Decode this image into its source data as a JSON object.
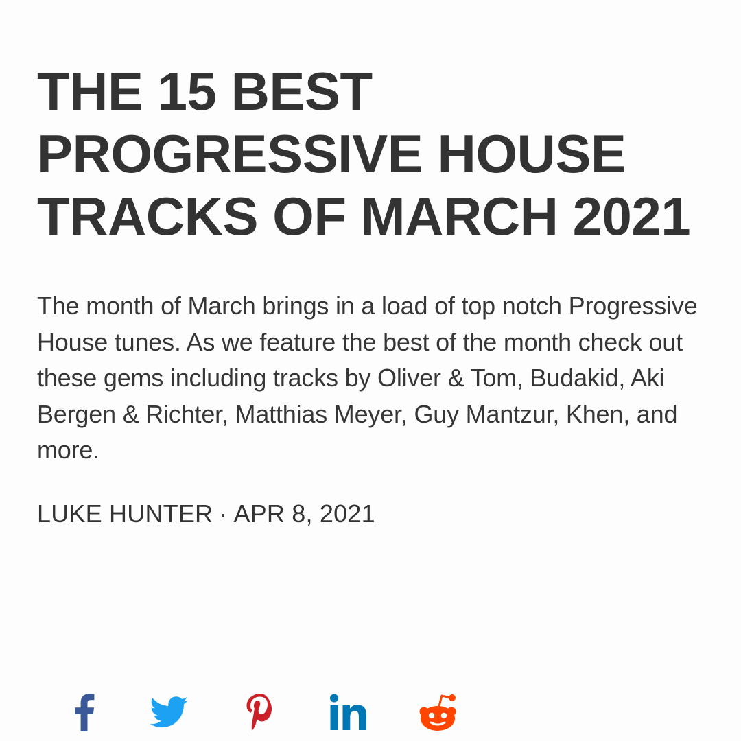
{
  "article": {
    "title": "THE 15 BEST PROGRESSIVE HOUSE TRACKS OF MARCH 2021",
    "dek": "The month of March brings in a load of top notch Progressive House tunes. As we feature the best of the month check out these gems including tracks by Oliver & Tom, Budakid, Aki Bergen & Richter, Matthias Meyer, Guy Mantzur, Khen, and more.",
    "author": "LUKE HUNTER",
    "separator": "·",
    "date": "APR 8, 2021"
  },
  "share": [
    {
      "icon": "facebook-icon",
      "color": "#3b5998"
    },
    {
      "icon": "twitter-icon",
      "color": "#1da1f2"
    },
    {
      "icon": "pinterest-icon",
      "color": "#cb2027"
    },
    {
      "icon": "linkedin-icon",
      "color": "#0077b5"
    },
    {
      "icon": "reddit-icon",
      "color": "#ff4500"
    }
  ]
}
